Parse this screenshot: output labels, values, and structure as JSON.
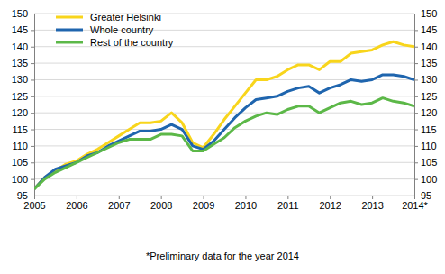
{
  "chart_data": {
    "type": "line",
    "annotations": [
      "*Preliminary data for the year 2014"
    ],
    "categories": [
      "2005",
      null,
      null,
      null,
      "2006",
      null,
      null,
      null,
      "2007",
      null,
      null,
      null,
      "2008",
      null,
      null,
      null,
      "2009",
      null,
      null,
      null,
      "2010",
      null,
      null,
      null,
      "2011",
      null,
      null,
      null,
      "2012",
      null,
      null,
      null,
      "2013",
      null,
      null,
      null,
      "2014*"
    ],
    "series": [
      {
        "name": "Greater Helsinki",
        "color": "#f8d51c",
        "values": [
          97,
          100.5,
          102.5,
          104.5,
          105.5,
          107.5,
          109,
          111,
          113,
          115,
          117,
          117,
          117.5,
          120,
          117,
          111,
          109.5,
          113.5,
          118,
          122,
          126,
          130,
          130,
          131,
          133,
          134.5,
          134.5,
          133,
          135.5,
          135.5,
          138,
          138.5,
          139,
          140.5,
          141.5,
          140.5,
          140
        ]
      },
      {
        "name": "Whole country",
        "color": "#1f65ae",
        "values": [
          97,
          100.5,
          103,
          104,
          105,
          107,
          108,
          110,
          111.5,
          113,
          114.5,
          114.5,
          115,
          116.5,
          115,
          110,
          109,
          111.5,
          115,
          118.5,
          121.5,
          124,
          124.5,
          125,
          126.5,
          127.5,
          128,
          126,
          127.5,
          128.5,
          130,
          129.5,
          130,
          131.5,
          131.5,
          131,
          130
        ]
      },
      {
        "name": "Rest of the country",
        "color": "#5cb848",
        "values": [
          97,
          100,
          102,
          103.5,
          105,
          106.5,
          108,
          109.5,
          111,
          112,
          112,
          112,
          113.5,
          113.5,
          113,
          108.5,
          108.5,
          110.5,
          112.5,
          115.5,
          117.5,
          119,
          120,
          119.5,
          121,
          122,
          122,
          120,
          121.5,
          123,
          123.5,
          122.5,
          123,
          124.5,
          123.5,
          123,
          122
        ]
      }
    ],
    "ylim": [
      95,
      150
    ],
    "yticks": [
      95,
      100,
      105,
      110,
      115,
      120,
      125,
      130,
      135,
      140,
      145,
      150
    ],
    "grid": true,
    "legend": "upper left"
  }
}
